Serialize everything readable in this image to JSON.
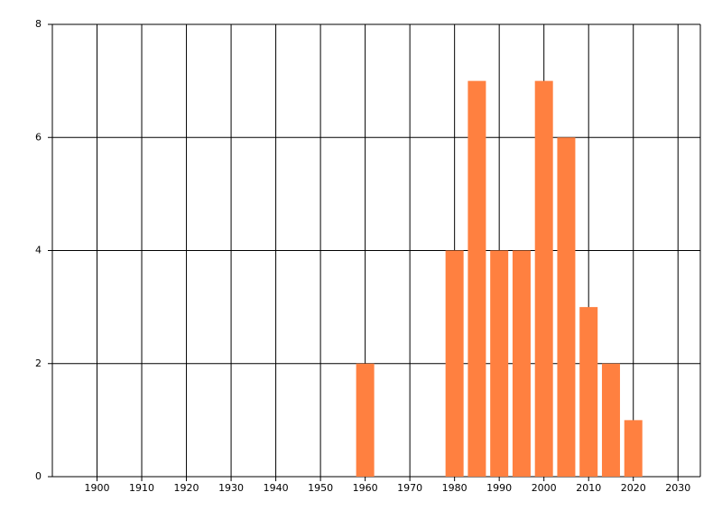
{
  "chart_data": {
    "type": "bar",
    "x": [
      1960,
      1980,
      1985,
      1990,
      1995,
      2000,
      2005,
      2010,
      2015,
      2020
    ],
    "values": [
      2,
      4,
      7,
      4,
      4,
      7,
      6,
      3,
      2,
      1
    ],
    "color": "#ff8040",
    "xlim": [
      1890,
      2035
    ],
    "xticks": [
      1900,
      1910,
      1920,
      1930,
      1940,
      1950,
      1960,
      1970,
      1980,
      1990,
      2000,
      2010,
      2020,
      2030
    ],
    "ylim": [
      0,
      8
    ],
    "yticks": [
      0,
      2,
      4,
      6,
      8
    ],
    "grid": true
  }
}
